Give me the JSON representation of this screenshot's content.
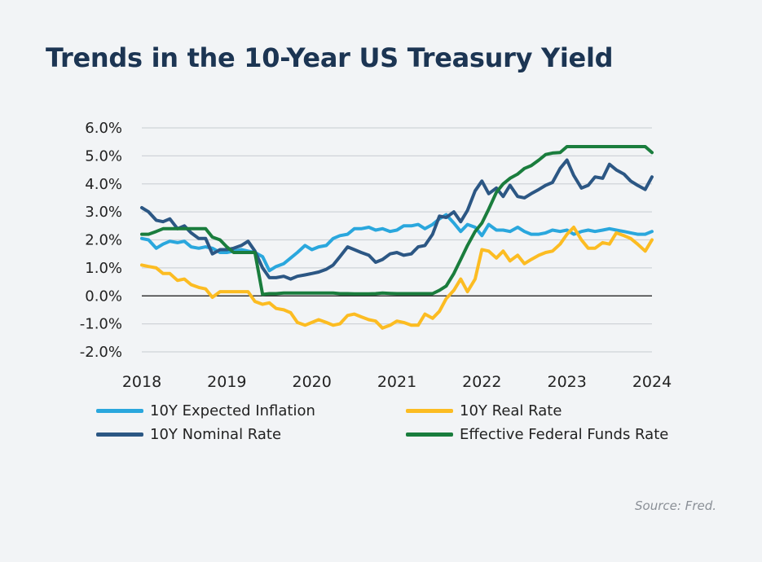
{
  "title": "Trends in the 10-Year US Treasury Yield",
  "source": "Source: Fred.",
  "chart_data": {
    "type": "line",
    "title": "Trends in the 10-Year US Treasury Yield",
    "ylim": [
      -2,
      6
    ],
    "xlim": [
      2018,
      2024
    ],
    "y_ticks": [
      6,
      5,
      4,
      3,
      2,
      1,
      0,
      -1,
      -2
    ],
    "y_tick_labels": [
      "6.0%",
      "5.0%",
      "4.0%",
      "3.0%",
      "2.0%",
      "1.0%",
      "0.0%",
      "-1.0%",
      "-2.0%"
    ],
    "x_ticks": [
      2018,
      2019,
      2020,
      2021,
      2022,
      2023,
      2024
    ],
    "x_tick_labels": [
      "2018",
      "2019",
      "2020",
      "2021",
      "2022",
      "2023",
      "2024"
    ],
    "grid": "horizontal",
    "legend_position": "bottom",
    "series": [
      {
        "name": "10Y Expected Inflation",
        "color": "#2aa7dd",
        "x": [
          2018.0,
          2018.08,
          2018.17,
          2018.25,
          2018.33,
          2018.42,
          2018.5,
          2018.58,
          2018.67,
          2018.75,
          2018.83,
          2018.92,
          2019.0,
          2019.08,
          2019.17,
          2019.25,
          2019.33,
          2019.42,
          2019.5,
          2019.58,
          2019.67,
          2019.75,
          2019.83,
          2019.92,
          2020.0,
          2020.08,
          2020.17,
          2020.25,
          2020.33,
          2020.42,
          2020.5,
          2020.58,
          2020.67,
          2020.75,
          2020.83,
          2020.92,
          2021.0,
          2021.08,
          2021.17,
          2021.25,
          2021.33,
          2021.42,
          2021.5,
          2021.58,
          2021.67,
          2021.75,
          2021.83,
          2021.92,
          2022.0,
          2022.08,
          2022.17,
          2022.25,
          2022.33,
          2022.42,
          2022.5,
          2022.58,
          2022.67,
          2022.75,
          2022.83,
          2022.92,
          2023.0,
          2023.08,
          2023.17,
          2023.25,
          2023.33,
          2023.42,
          2023.5,
          2023.58,
          2023.67,
          2023.75,
          2023.83,
          2023.92,
          2024.0
        ],
        "values": [
          2.05,
          2.0,
          1.7,
          1.85,
          1.95,
          1.9,
          1.95,
          1.75,
          1.7,
          1.75,
          1.7,
          1.55,
          1.55,
          1.6,
          1.65,
          1.6,
          1.55,
          1.4,
          0.9,
          1.05,
          1.15,
          1.35,
          1.55,
          1.8,
          1.65,
          1.75,
          1.8,
          2.05,
          2.15,
          2.2,
          2.4,
          2.4,
          2.45,
          2.35,
          2.4,
          2.3,
          2.35,
          2.5,
          2.5,
          2.55,
          2.4,
          2.55,
          2.75,
          2.9,
          2.6,
          2.3,
          2.55,
          2.45,
          2.15,
          2.55,
          2.35,
          2.35,
          2.3,
          2.45,
          2.3,
          2.2,
          2.2,
          2.25,
          2.35,
          2.3,
          2.35,
          2.2,
          2.3,
          2.35,
          2.3,
          2.35,
          2.4,
          2.35,
          2.3,
          2.25,
          2.2,
          2.2,
          2.3
        ]
      },
      {
        "name": "10Y Real Rate",
        "color": "#fcbc22",
        "x": [
          2018.0,
          2018.08,
          2018.17,
          2018.25,
          2018.33,
          2018.42,
          2018.5,
          2018.58,
          2018.67,
          2018.75,
          2018.83,
          2018.92,
          2019.0,
          2019.08,
          2019.17,
          2019.25,
          2019.33,
          2019.42,
          2019.5,
          2019.58,
          2019.67,
          2019.75,
          2019.83,
          2019.92,
          2020.0,
          2020.08,
          2020.17,
          2020.25,
          2020.33,
          2020.42,
          2020.5,
          2020.58,
          2020.67,
          2020.75,
          2020.83,
          2020.92,
          2021.0,
          2021.08,
          2021.17,
          2021.25,
          2021.33,
          2021.42,
          2021.5,
          2021.58,
          2021.67,
          2021.75,
          2021.83,
          2021.92,
          2022.0,
          2022.08,
          2022.17,
          2022.25,
          2022.33,
          2022.42,
          2022.5,
          2022.58,
          2022.67,
          2022.75,
          2022.83,
          2022.92,
          2023.0,
          2023.08,
          2023.17,
          2023.25,
          2023.33,
          2023.42,
          2023.5,
          2023.58,
          2023.67,
          2023.75,
          2023.83,
          2023.92,
          2024.0
        ],
        "values": [
          1.1,
          1.05,
          1.0,
          0.8,
          0.8,
          0.55,
          0.6,
          0.4,
          0.3,
          0.25,
          -0.05,
          0.15,
          0.15,
          0.15,
          0.15,
          0.15,
          -0.2,
          -0.3,
          -0.25,
          -0.45,
          -0.5,
          -0.6,
          -0.95,
          -1.05,
          -0.95,
          -0.85,
          -0.95,
          -1.05,
          -1.0,
          -0.7,
          -0.65,
          -0.75,
          -0.85,
          -0.9,
          -1.15,
          -1.05,
          -0.9,
          -0.95,
          -1.05,
          -1.05,
          -0.65,
          -0.8,
          -0.55,
          -0.1,
          0.2,
          0.6,
          0.15,
          0.6,
          1.65,
          1.6,
          1.35,
          1.6,
          1.25,
          1.45,
          1.15,
          1.3,
          1.45,
          1.55,
          1.6,
          1.85,
          2.2,
          2.45,
          2.0,
          1.7,
          1.7,
          1.9,
          1.85,
          2.25,
          2.15,
          2.05,
          1.85,
          1.6,
          2.0
        ]
      },
      {
        "name": "10Y Nominal Rate",
        "color": "#2c5784",
        "x": [
          2018.0,
          2018.08,
          2018.17,
          2018.25,
          2018.33,
          2018.42,
          2018.5,
          2018.58,
          2018.67,
          2018.75,
          2018.83,
          2018.92,
          2019.0,
          2019.08,
          2019.17,
          2019.25,
          2019.33,
          2019.42,
          2019.5,
          2019.58,
          2019.67,
          2019.75,
          2019.83,
          2019.92,
          2020.0,
          2020.08,
          2020.17,
          2020.25,
          2020.33,
          2020.42,
          2020.5,
          2020.58,
          2020.67,
          2020.75,
          2020.83,
          2020.92,
          2021.0,
          2021.08,
          2021.17,
          2021.25,
          2021.33,
          2021.42,
          2021.5,
          2021.58,
          2021.67,
          2021.75,
          2021.83,
          2021.92,
          2022.0,
          2022.08,
          2022.17,
          2022.25,
          2022.33,
          2022.42,
          2022.5,
          2022.58,
          2022.67,
          2022.75,
          2022.83,
          2022.92,
          2023.0,
          2023.08,
          2023.17,
          2023.25,
          2023.33,
          2023.42,
          2023.5,
          2023.58,
          2023.67,
          2023.75,
          2023.83,
          2023.92,
          2024.0
        ],
        "values": [
          3.15,
          3.0,
          2.7,
          2.65,
          2.75,
          2.4,
          2.5,
          2.25,
          2.05,
          2.05,
          1.5,
          1.65,
          1.65,
          1.7,
          1.8,
          1.95,
          1.6,
          1.0,
          0.65,
          0.65,
          0.7,
          0.6,
          0.7,
          0.75,
          0.8,
          0.85,
          0.95,
          1.1,
          1.4,
          1.75,
          1.65,
          1.55,
          1.45,
          1.2,
          1.3,
          1.5,
          1.55,
          1.45,
          1.5,
          1.75,
          1.8,
          2.2,
          2.85,
          2.8,
          3.0,
          2.65,
          3.05,
          3.75,
          4.1,
          3.65,
          3.85,
          3.55,
          3.95,
          3.55,
          3.5,
          3.65,
          3.8,
          3.95,
          4.05,
          4.55,
          4.85,
          4.3,
          3.85,
          3.95,
          4.25,
          4.2,
          4.7,
          4.5,
          4.35,
          4.1,
          3.95,
          3.8,
          4.25
        ]
      },
      {
        "name": "Effective Federal Funds Rate",
        "color": "#1a7d3d",
        "x": [
          2018.0,
          2018.08,
          2018.17,
          2018.25,
          2018.33,
          2018.42,
          2018.5,
          2018.58,
          2018.67,
          2018.75,
          2018.83,
          2018.92,
          2019.0,
          2019.08,
          2019.17,
          2019.25,
          2019.33,
          2019.42,
          2019.5,
          2019.58,
          2019.67,
          2019.75,
          2019.83,
          2019.92,
          2020.0,
          2020.08,
          2020.17,
          2020.25,
          2020.33,
          2020.42,
          2020.5,
          2020.58,
          2020.67,
          2020.75,
          2020.83,
          2020.92,
          2021.0,
          2021.08,
          2021.17,
          2021.25,
          2021.33,
          2021.42,
          2021.5,
          2021.58,
          2021.67,
          2021.75,
          2021.83,
          2021.92,
          2022.0,
          2022.08,
          2022.17,
          2022.25,
          2022.33,
          2022.42,
          2022.5,
          2022.58,
          2022.67,
          2022.75,
          2022.83,
          2022.92,
          2023.0,
          2023.08,
          2023.17,
          2023.25,
          2023.33,
          2023.42,
          2023.5,
          2023.58,
          2023.67,
          2023.75,
          2023.83,
          2023.92,
          2024.0
        ],
        "values": [
          2.2,
          2.2,
          2.3,
          2.4,
          2.4,
          2.4,
          2.4,
          2.4,
          2.4,
          2.4,
          2.1,
          2.0,
          1.75,
          1.55,
          1.55,
          1.55,
          1.55,
          0.05,
          0.08,
          0.08,
          0.1,
          0.1,
          0.1,
          0.1,
          0.1,
          0.1,
          0.1,
          0.1,
          0.08,
          0.08,
          0.07,
          0.07,
          0.07,
          0.08,
          0.1,
          0.09,
          0.08,
          0.08,
          0.08,
          0.08,
          0.08,
          0.08,
          0.2,
          0.35,
          0.8,
          1.3,
          1.8,
          2.3,
          2.6,
          3.1,
          3.7,
          4.0,
          4.2,
          4.35,
          4.55,
          4.65,
          4.85,
          5.05,
          5.1,
          5.12,
          5.33,
          5.33,
          5.33,
          5.33,
          5.33,
          5.33,
          5.33,
          5.33,
          5.33,
          5.33,
          5.33,
          5.33,
          5.12
        ]
      }
    ]
  }
}
